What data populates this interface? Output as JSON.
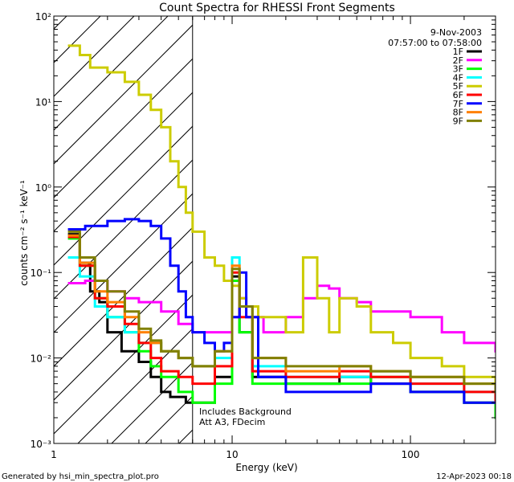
{
  "chart_data": {
    "type": "line",
    "title": "Count Spectra for RHESSI Front Segments",
    "xlabel": "Energy (keV)",
    "ylabel": "counts cm⁻² s⁻¹ keV⁻¹",
    "xscale": "log",
    "yscale": "log",
    "xlim": [
      1,
      300
    ],
    "ylim": [
      0.001,
      100
    ],
    "x_tick_labels": [
      "1",
      "10",
      "100"
    ],
    "y_tick_labels": [
      "10⁻³",
      "10⁻²",
      "10⁻¹",
      "10⁰",
      "10¹",
      "10²"
    ],
    "date": "9-Nov-2003",
    "time_range": "07:57:00 to 07:58:00",
    "annotations": [
      "Includes Background",
      "Att A3, FDecim"
    ],
    "attenuator_shade_max_energy": 6,
    "legend_position": "top-right",
    "series": [
      {
        "name": "1F",
        "color": "#000000",
        "points": [
          [
            1.2,
            0.28
          ],
          [
            1.4,
            0.13
          ],
          [
            1.6,
            0.06
          ],
          [
            1.8,
            0.045
          ],
          [
            2.0,
            0.02
          ],
          [
            2.4,
            0.012
          ],
          [
            3.0,
            0.009
          ],
          [
            3.5,
            0.006
          ],
          [
            4.0,
            0.004
          ],
          [
            4.5,
            0.0035
          ],
          [
            5.5,
            0.003
          ],
          [
            7,
            0.003
          ],
          [
            8,
            0.006
          ],
          [
            10,
            0.09
          ],
          [
            11,
            0.02
          ],
          [
            13,
            0.006
          ],
          [
            20,
            0.005
          ],
          [
            40,
            0.006
          ],
          [
            60,
            0.005
          ],
          [
            100,
            0.004
          ],
          [
            200,
            0.003
          ],
          [
            300,
            0.003
          ]
        ]
      },
      {
        "name": "2F",
        "color": "#ff00ff",
        "points": [
          [
            1.2,
            0.075
          ],
          [
            1.5,
            0.08
          ],
          [
            2.0,
            0.06
          ],
          [
            2.5,
            0.05
          ],
          [
            3.0,
            0.045
          ],
          [
            4.0,
            0.035
          ],
          [
            5.0,
            0.025
          ],
          [
            6.0,
            0.02
          ],
          [
            7,
            0.02
          ],
          [
            8,
            0.02
          ],
          [
            9,
            0.02
          ],
          [
            10,
            0.03
          ],
          [
            11,
            0.05
          ],
          [
            12,
            0.03
          ],
          [
            15,
            0.02
          ],
          [
            20,
            0.03
          ],
          [
            25,
            0.05
          ],
          [
            30,
            0.07
          ],
          [
            35,
            0.065
          ],
          [
            40,
            0.05
          ],
          [
            50,
            0.045
          ],
          [
            60,
            0.035
          ],
          [
            80,
            0.035
          ],
          [
            100,
            0.03
          ],
          [
            150,
            0.02
          ],
          [
            200,
            0.015
          ],
          [
            300,
            0.012
          ]
        ]
      },
      {
        "name": "3F",
        "color": "#00ff00",
        "points": [
          [
            1.2,
            0.25
          ],
          [
            1.4,
            0.12
          ],
          [
            1.7,
            0.05
          ],
          [
            2.0,
            0.03
          ],
          [
            2.5,
            0.02
          ],
          [
            3.0,
            0.012
          ],
          [
            3.5,
            0.008
          ],
          [
            4.0,
            0.006
          ],
          [
            5.0,
            0.004
          ],
          [
            6.0,
            0.003
          ],
          [
            8,
            0.005
          ],
          [
            10,
            0.08
          ],
          [
            11,
            0.02
          ],
          [
            13,
            0.005
          ],
          [
            20,
            0.005
          ],
          [
            40,
            0.005
          ],
          [
            60,
            0.006
          ],
          [
            100,
            0.004
          ],
          [
            200,
            0.003
          ],
          [
            300,
            0.002
          ]
        ]
      },
      {
        "name": "4F",
        "color": "#00ffff",
        "points": [
          [
            1.2,
            0.15
          ],
          [
            1.4,
            0.09
          ],
          [
            1.7,
            0.04
          ],
          [
            2.0,
            0.03
          ],
          [
            2.5,
            0.02
          ],
          [
            3.0,
            0.015
          ],
          [
            4.0,
            0.012
          ],
          [
            5.0,
            0.01
          ],
          [
            6.0,
            0.008
          ],
          [
            8,
            0.01
          ],
          [
            10,
            0.15
          ],
          [
            11,
            0.04
          ],
          [
            13,
            0.008
          ],
          [
            20,
            0.006
          ],
          [
            40,
            0.006
          ],
          [
            60,
            0.007
          ],
          [
            100,
            0.005
          ],
          [
            200,
            0.004
          ],
          [
            300,
            0.003
          ]
        ]
      },
      {
        "name": "5F",
        "color": "#cccc00",
        "points": [
          [
            1.2,
            45
          ],
          [
            1.4,
            35
          ],
          [
            1.6,
            25
          ],
          [
            2.0,
            22
          ],
          [
            2.5,
            17
          ],
          [
            3.0,
            12
          ],
          [
            3.5,
            8
          ],
          [
            4.0,
            5
          ],
          [
            4.5,
            2
          ],
          [
            5.0,
            1
          ],
          [
            5.5,
            0.5
          ],
          [
            6.0,
            0.3
          ],
          [
            7,
            0.15
          ],
          [
            8,
            0.12
          ],
          [
            9,
            0.08
          ],
          [
            10,
            0.07
          ],
          [
            11,
            0.05
          ],
          [
            12,
            0.04
          ],
          [
            14,
            0.03
          ],
          [
            16,
            0.03
          ],
          [
            20,
            0.02
          ],
          [
            25,
            0.15
          ],
          [
            30,
            0.05
          ],
          [
            35,
            0.02
          ],
          [
            40,
            0.05
          ],
          [
            50,
            0.04
          ],
          [
            60,
            0.02
          ],
          [
            80,
            0.015
          ],
          [
            100,
            0.01
          ],
          [
            150,
            0.008
          ],
          [
            200,
            0.006
          ],
          [
            300,
            0.005
          ]
        ]
      },
      {
        "name": "6F",
        "color": "#ff0000",
        "points": [
          [
            1.2,
            0.26
          ],
          [
            1.4,
            0.12
          ],
          [
            1.7,
            0.05
          ],
          [
            2.0,
            0.04
          ],
          [
            2.5,
            0.025
          ],
          [
            3.0,
            0.015
          ],
          [
            3.5,
            0.01
          ],
          [
            4.0,
            0.007
          ],
          [
            5.0,
            0.006
          ],
          [
            6.0,
            0.005
          ],
          [
            8,
            0.008
          ],
          [
            10,
            0.1
          ],
          [
            11,
            0.03
          ],
          [
            13,
            0.007
          ],
          [
            20,
            0.006
          ],
          [
            40,
            0.007
          ],
          [
            60,
            0.006
          ],
          [
            100,
            0.005
          ],
          [
            200,
            0.004
          ],
          [
            300,
            0.003
          ]
        ]
      },
      {
        "name": "7F",
        "color": "#0000ff",
        "points": [
          [
            1.2,
            0.32
          ],
          [
            1.5,
            0.35
          ],
          [
            2.0,
            0.4
          ],
          [
            2.5,
            0.42
          ],
          [
            3.0,
            0.4
          ],
          [
            3.5,
            0.35
          ],
          [
            4.0,
            0.25
          ],
          [
            4.5,
            0.12
          ],
          [
            5.0,
            0.06
          ],
          [
            5.5,
            0.03
          ],
          [
            6.0,
            0.02
          ],
          [
            7,
            0.015
          ],
          [
            8,
            0.012
          ],
          [
            9,
            0.015
          ],
          [
            10,
            0.03
          ],
          [
            11,
            0.1
          ],
          [
            12,
            0.03
          ],
          [
            14,
            0.006
          ],
          [
            20,
            0.004
          ],
          [
            40,
            0.004
          ],
          [
            60,
            0.005
          ],
          [
            100,
            0.004
          ],
          [
            200,
            0.003
          ],
          [
            300,
            0.003
          ]
        ]
      },
      {
        "name": "8F",
        "color": "#ff8000",
        "points": [
          [
            1.2,
            0.27
          ],
          [
            1.4,
            0.13
          ],
          [
            1.7,
            0.06
          ],
          [
            2.0,
            0.045
          ],
          [
            2.5,
            0.03
          ],
          [
            3.0,
            0.02
          ],
          [
            3.5,
            0.015
          ],
          [
            4.0,
            0.012
          ],
          [
            5.0,
            0.01
          ],
          [
            6.0,
            0.008
          ],
          [
            8,
            0.012
          ],
          [
            10,
            0.12
          ],
          [
            11,
            0.04
          ],
          [
            13,
            0.01
          ],
          [
            20,
            0.007
          ],
          [
            40,
            0.008
          ],
          [
            60,
            0.007
          ],
          [
            100,
            0.006
          ],
          [
            200,
            0.005
          ],
          [
            300,
            0.004
          ]
        ]
      },
      {
        "name": "9F",
        "color": "#808000",
        "points": [
          [
            1.2,
            0.3
          ],
          [
            1.4,
            0.15
          ],
          [
            1.7,
            0.08
          ],
          [
            2.0,
            0.06
          ],
          [
            2.5,
            0.035
          ],
          [
            3.0,
            0.022
          ],
          [
            3.5,
            0.016
          ],
          [
            4.0,
            0.012
          ],
          [
            5.0,
            0.01
          ],
          [
            6.0,
            0.008
          ],
          [
            8,
            0.012
          ],
          [
            10,
            0.11
          ],
          [
            11,
            0.04
          ],
          [
            13,
            0.01
          ],
          [
            20,
            0.008
          ],
          [
            40,
            0.008
          ],
          [
            60,
            0.007
          ],
          [
            100,
            0.006
          ],
          [
            200,
            0.005
          ],
          [
            300,
            0.004
          ]
        ]
      }
    ]
  },
  "footer": {
    "generated_by": "Generated by hsi_min_spectra_plot.pro",
    "timestamp": "12-Apr-2023 00:18"
  }
}
